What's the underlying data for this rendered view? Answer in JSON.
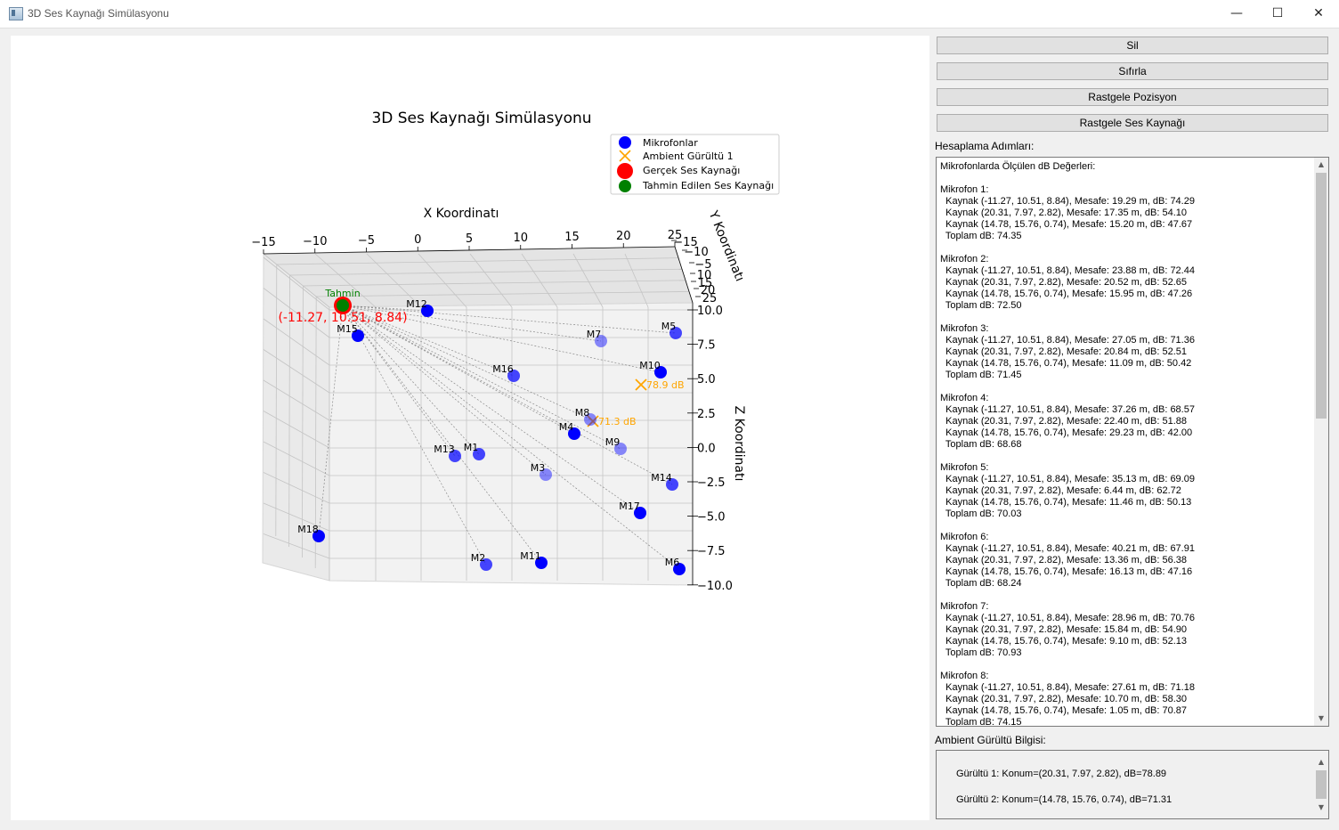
{
  "window": {
    "title": "3D Ses Kaynağı Simülasyonu",
    "controls": {
      "minimize": "—",
      "maximize": "☐",
      "close": "✕"
    }
  },
  "buttons": {
    "delete": "Sil",
    "reset": "Sıfırla",
    "random_position": "Rastgele Pozisyon",
    "random_source": "Rastgele Ses Kaynağı"
  },
  "steps": {
    "label": "Hesaplama Adımları:",
    "text": "Mikrofonlarda Ölçülen dB Değerleri:\n\nMikrofon 1:\n  Kaynak (-11.27, 10.51, 8.84), Mesafe: 19.29 m, dB: 74.29\n  Kaynak (20.31, 7.97, 2.82), Mesafe: 17.35 m, dB: 54.10\n  Kaynak (14.78, 15.76, 0.74), Mesafe: 15.20 m, dB: 47.67\n  Toplam dB: 74.35\n\nMikrofon 2:\n  Kaynak (-11.27, 10.51, 8.84), Mesafe: 23.88 m, dB: 72.44\n  Kaynak (20.31, 7.97, 2.82), Mesafe: 20.52 m, dB: 52.65\n  Kaynak (14.78, 15.76, 0.74), Mesafe: 15.95 m, dB: 47.26\n  Toplam dB: 72.50\n\nMikrofon 3:\n  Kaynak (-11.27, 10.51, 8.84), Mesafe: 27.05 m, dB: 71.36\n  Kaynak (20.31, 7.97, 2.82), Mesafe: 20.84 m, dB: 52.51\n  Kaynak (14.78, 15.76, 0.74), Mesafe: 11.09 m, dB: 50.42\n  Toplam dB: 71.45\n\nMikrofon 4:\n  Kaynak (-11.27, 10.51, 8.84), Mesafe: 37.26 m, dB: 68.57\n  Kaynak (20.31, 7.97, 2.82), Mesafe: 22.40 m, dB: 51.88\n  Kaynak (14.78, 15.76, 0.74), Mesafe: 29.23 m, dB: 42.00\n  Toplam dB: 68.68\n\nMikrofon 5:\n  Kaynak (-11.27, 10.51, 8.84), Mesafe: 35.13 m, dB: 69.09\n  Kaynak (20.31, 7.97, 2.82), Mesafe: 6.44 m, dB: 62.72\n  Kaynak (14.78, 15.76, 0.74), Mesafe: 11.46 m, dB: 50.13\n  Toplam dB: 70.03\n\nMikrofon 6:\n  Kaynak (-11.27, 10.51, 8.84), Mesafe: 40.21 m, dB: 67.91\n  Kaynak (20.31, 7.97, 2.82), Mesafe: 13.36 m, dB: 56.38\n  Kaynak (14.78, 15.76, 0.74), Mesafe: 16.13 m, dB: 47.16\n  Toplam dB: 68.24\n\nMikrofon 7:\n  Kaynak (-11.27, 10.51, 8.84), Mesafe: 28.96 m, dB: 70.76\n  Kaynak (20.31, 7.97, 2.82), Mesafe: 15.84 m, dB: 54.90\n  Kaynak (14.78, 15.76, 0.74), Mesafe: 9.10 m, dB: 52.13\n  Toplam dB: 70.93\n\nMikrofon 8:\n  Kaynak (-11.27, 10.51, 8.84), Mesafe: 27.61 m, dB: 71.18\n  Kaynak (20.31, 7.97, 2.82), Mesafe: 10.70 m, dB: 58.30\n  Kaynak (14.78, 15.76, 0.74), Mesafe: 1.05 m, dB: 70.87\n  Toplam dB: 74.15"
  },
  "ambient": {
    "label": "Ambient Gürültü Bilgisi:",
    "lines": [
      "Gürültü 1: Konum=(20.31, 7.97, 2.82), dB=78.89",
      "Gürültü 2: Konum=(14.78, 15.76, 0.74), dB=71.31"
    ]
  },
  "chart_data": {
    "type": "scatter",
    "projection": "3d",
    "title": "3D Ses Kaynağı Simülasyonu",
    "xlabel": "X Koordinatı",
    "ylabel": "Y Koordinatı",
    "zlabel": "Z Koordinatı",
    "x_ticks": [
      "−15",
      "−10",
      "−5",
      "0",
      "5",
      "10",
      "15",
      "20",
      "25"
    ],
    "y_ticks": [
      "−15",
      "−10",
      "−5",
      "10",
      "15",
      "20",
      "25"
    ],
    "z_ticks": [
      "10.0",
      "7.5",
      "5.0",
      "2.5",
      "0.0",
      "−2.5",
      "−5.0",
      "−7.5",
      "−10.0"
    ],
    "legend": {
      "placement": "upper-right",
      "entries": [
        {
          "label": "Mikrofonlar",
          "color": "#0000ff",
          "marker": "circle"
        },
        {
          "label": "Ambient Gürültü 1",
          "color": "#ffa500",
          "marker": "x"
        },
        {
          "label": "Gerçek Ses Kaynağı",
          "color": "#ff0000",
          "marker": "circle"
        },
        {
          "label": "Tahmin Edilen Ses Kaynağı",
          "color": "#008000",
          "marker": "circle"
        }
      ]
    },
    "microphones": [
      {
        "label": "M12",
        "depth": "front"
      },
      {
        "label": "M15",
        "depth": "front"
      },
      {
        "label": "M7",
        "depth": "back"
      },
      {
        "label": "M5",
        "depth": "mid"
      },
      {
        "label": "M16",
        "depth": "mid"
      },
      {
        "label": "M10",
        "depth": "front"
      },
      {
        "label": "M8",
        "depth": "back"
      },
      {
        "label": "M4",
        "depth": "front"
      },
      {
        "label": "M9",
        "depth": "back"
      },
      {
        "label": "M13",
        "depth": "mid"
      },
      {
        "label": "M1",
        "depth": "mid"
      },
      {
        "label": "M3",
        "depth": "back"
      },
      {
        "label": "M14",
        "depth": "mid"
      },
      {
        "label": "M17",
        "depth": "front"
      },
      {
        "label": "M18",
        "depth": "front"
      },
      {
        "label": "M2",
        "depth": "mid"
      },
      {
        "label": "M11",
        "depth": "front"
      },
      {
        "label": "M6",
        "depth": "front"
      }
    ],
    "true_source": {
      "label": "(-11.27, 10.51, 8.84)",
      "color": "#ff0000"
    },
    "estimated_source": {
      "label": "Tahmin",
      "color": "#008000"
    },
    "noises": [
      {
        "label": "78.9 dB",
        "color": "#ffa500"
      },
      {
        "label": "71.3 dB",
        "color": "#ffa500"
      }
    ]
  }
}
